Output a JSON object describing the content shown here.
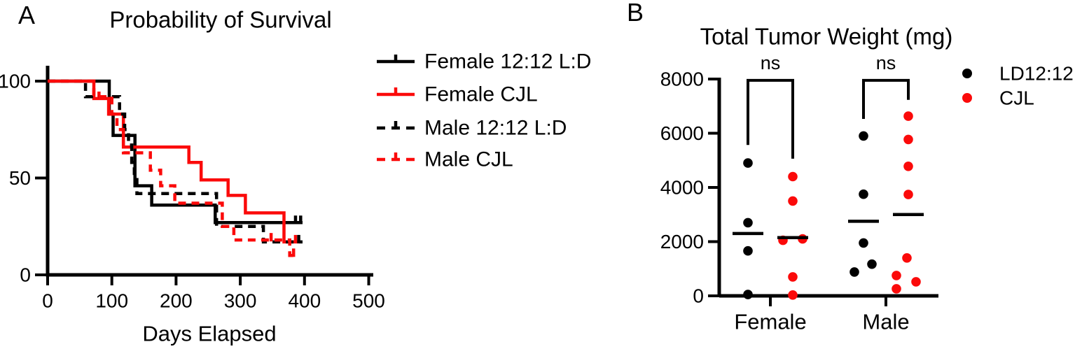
{
  "figure": {
    "background": "#ffffff",
    "black": "#000000",
    "red": "#fb0a0a"
  },
  "chart_data": [
    {
      "panel_label": "A",
      "type": "line",
      "subtype": "kaplan-meier-step",
      "title": "Probability of Survival",
      "xlabel": "Days Elapsed",
      "ylabel": "",
      "xlim": [
        0,
        500
      ],
      "ylim": [
        0,
        100
      ],
      "xticks": [
        0,
        100,
        200,
        300,
        400,
        500
      ],
      "yticks": [
        100,
        50,
        0
      ],
      "grid": false,
      "legend_position": "right",
      "series": [
        {
          "name": "Female 12:12 L:D",
          "color": "#000000",
          "dash": "solid",
          "points": [
            [
              0,
              100
            ],
            [
              96,
              100
            ],
            [
              96,
              83
            ],
            [
              102,
              83
            ],
            [
              102,
              72
            ],
            [
              136,
              72
            ],
            [
              136,
              46
            ],
            [
              162,
              46
            ],
            [
              162,
              36
            ],
            [
              261,
              36
            ],
            [
              261,
              27
            ],
            [
              397,
              27
            ]
          ],
          "censor_ticks": [
            [
              386,
              27
            ],
            [
              394,
              27
            ]
          ]
        },
        {
          "name": "Female CJL",
          "color": "#fb0a0a",
          "dash": "solid",
          "points": [
            [
              0,
              100
            ],
            [
              72,
              100
            ],
            [
              72,
              91
            ],
            [
              95,
              91
            ],
            [
              95,
              83
            ],
            [
              118,
              83
            ],
            [
              118,
              66
            ],
            [
              220,
              66
            ],
            [
              220,
              58
            ],
            [
              239,
              58
            ],
            [
              239,
              49
            ],
            [
              281,
              49
            ],
            [
              281,
              41
            ],
            [
              308,
              41
            ],
            [
              308,
              32
            ],
            [
              368,
              32
            ],
            [
              368,
              17
            ],
            [
              392,
              17
            ]
          ],
          "censor_ticks": [
            [
              80,
              91
            ],
            [
              386,
              17
            ]
          ]
        },
        {
          "name": "Male 12:12 L:D",
          "color": "#000000",
          "dash": "dashed",
          "points": [
            [
              0,
              100
            ],
            [
              59,
              100
            ],
            [
              59,
              92
            ],
            [
              112,
              92
            ],
            [
              112,
              83
            ],
            [
              120,
              83
            ],
            [
              120,
              75
            ],
            [
              126,
              75
            ],
            [
              126,
              67
            ],
            [
              131,
              67
            ],
            [
              131,
              58
            ],
            [
              135,
              58
            ],
            [
              135,
              50
            ],
            [
              139,
              50
            ],
            [
              139,
              42
            ],
            [
              263,
              42
            ],
            [
              263,
              25
            ],
            [
              336,
              25
            ],
            [
              336,
              17
            ],
            [
              397,
              17
            ]
          ],
          "censor_ticks": [
            [
              391,
              17
            ]
          ]
        },
        {
          "name": "Male CJL",
          "color": "#fb0a0a",
          "dash": "dashed",
          "points": [
            [
              0,
              100
            ],
            [
              72,
              100
            ],
            [
              72,
              92
            ],
            [
              100,
              92
            ],
            [
              100,
              83
            ],
            [
              108,
              83
            ],
            [
              108,
              75
            ],
            [
              118,
              75
            ],
            [
              118,
              63
            ],
            [
              160,
              63
            ],
            [
              160,
              54
            ],
            [
              176,
              54
            ],
            [
              176,
              46
            ],
            [
              198,
              46
            ],
            [
              198,
              37
            ],
            [
              272,
              37
            ],
            [
              272,
              25
            ],
            [
              290,
              25
            ],
            [
              290,
              18
            ],
            [
              377,
              18
            ],
            [
              377,
              10
            ],
            [
              390,
              10
            ]
          ],
          "censor_ticks": [
            [
              348,
              18
            ],
            [
              383,
              10
            ]
          ]
        }
      ]
    },
    {
      "panel_label": "B",
      "type": "scatter",
      "subtype": "column-dot-plot",
      "title": "Total Tumor Weight (mg)",
      "ylim": [
        0,
        8000
      ],
      "yticks": [
        8000,
        6000,
        4000,
        2000,
        0
      ],
      "categories": [
        "Female",
        "Male"
      ],
      "annotations": [
        {
          "text": "ns",
          "category": "Female",
          "bracket_top": 7950,
          "bracket_legs": [
            5570,
            5060
          ]
        },
        {
          "text": "ns",
          "category": "Male",
          "bracket_top": 7950,
          "bracket_legs": [
            6530,
            7230
          ]
        }
      ],
      "legend": [
        {
          "label": "LD12:12",
          "color": "#000000"
        },
        {
          "label": "CJL",
          "color": "#fb0a0a"
        }
      ],
      "groups": [
        {
          "category": "Female",
          "condition": "LD12:12",
          "color": "#000000",
          "values": [
            4900,
            2700,
            1660,
            50
          ],
          "dx": [
            0,
            0,
            0,
            0
          ],
          "mean": 2300
        },
        {
          "category": "Female",
          "condition": "CJL",
          "color": "#fb0a0a",
          "values": [
            4400,
            3500,
            2050,
            2100,
            700,
            30
          ],
          "dx": [
            0,
            0,
            -14,
            14,
            0,
            0
          ],
          "mean": 2150
        },
        {
          "category": "Male",
          "condition": "LD12:12",
          "color": "#000000",
          "values": [
            5900,
            3750,
            1950,
            1170,
            880
          ],
          "dx": [
            0,
            0,
            0,
            12,
            -13
          ],
          "mean": 2750
        },
        {
          "category": "Male",
          "condition": "CJL",
          "color": "#fb0a0a",
          "values": [
            6630,
            5770,
            4780,
            3740,
            1400,
            750,
            520,
            260
          ],
          "dx": [
            0,
            0,
            0,
            0,
            -2,
            -17,
            11,
            -17
          ],
          "mean": 3000
        }
      ]
    }
  ]
}
